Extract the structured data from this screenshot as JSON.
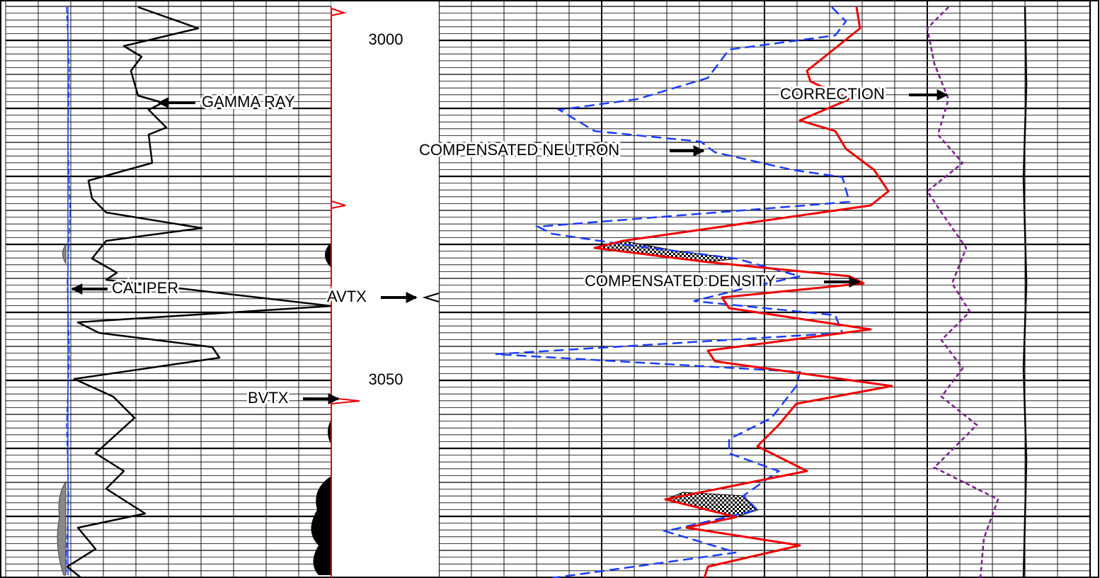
{
  "depth_labels": [
    3000,
    3050
  ],
  "curve_labels": {
    "gamma_ray": "GAMMA RAY",
    "caliper": "CALIPER",
    "avtx": "AVTX",
    "bvtx": "BVTX",
    "compensated_neutron": "COMPENSATED NEUTRON",
    "correction": "CORRECTION",
    "compensated_density": "COMPENSATED DENSITY"
  }
}
